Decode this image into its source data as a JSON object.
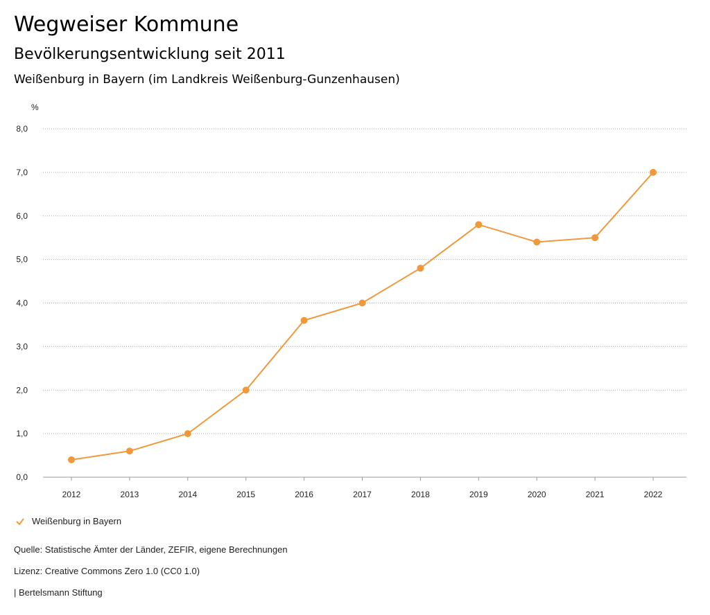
{
  "header": {
    "title": "Wegweiser Kommune",
    "subtitle": "Bevölkerungsentwicklung seit 2011",
    "place": "Weißenburg in Bayern (im Landkreis Weißenburg-Gunzenhausen)"
  },
  "chart_data": {
    "type": "line",
    "title": "Bevölkerungsentwicklung seit 2011",
    "ylabel": "%",
    "xlabel": "",
    "ylim": [
      0,
      8
    ],
    "yticks": [
      "0,0",
      "1,0",
      "2,0",
      "3,0",
      "4,0",
      "5,0",
      "6,0",
      "7,0",
      "8,0"
    ],
    "categories": [
      "2012",
      "2013",
      "2014",
      "2015",
      "2016",
      "2017",
      "2018",
      "2019",
      "2020",
      "2021",
      "2022"
    ],
    "series": [
      {
        "name": "Weißenburg in Bayern",
        "color": "#f0983a",
        "values": [
          0.4,
          0.6,
          1.0,
          2.0,
          3.6,
          4.0,
          4.8,
          5.8,
          5.4,
          5.5,
          7.0
        ]
      }
    ],
    "grid": true,
    "legend_position": "bottom-left"
  },
  "legend": {
    "label": "Weißenburg in Bayern"
  },
  "footer": {
    "source": "Quelle: Statistische Ämter der Länder, ZEFIR, eigene Berechnungen",
    "license": "Lizenz: Creative Commons Zero 1.0 (CC0 1.0)",
    "publisher": "| Bertelsmann Stiftung"
  }
}
